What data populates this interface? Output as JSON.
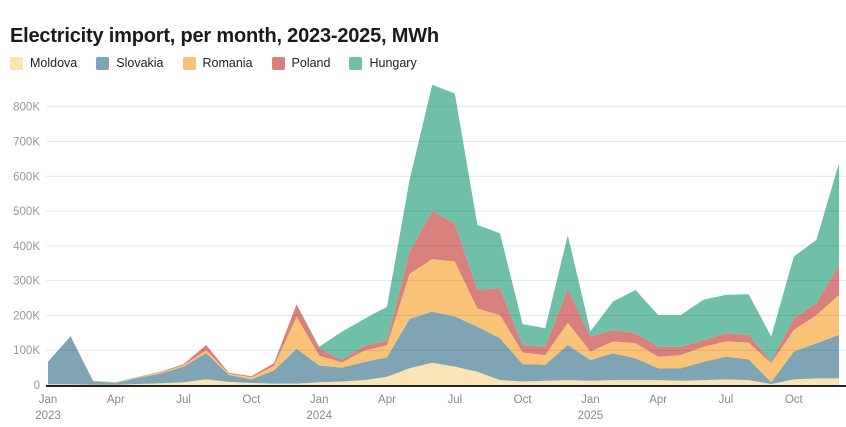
{
  "title": "Electricity import, per month, 2023-2025, MWh",
  "chart_data": {
    "type": "area",
    "stacked": true,
    "title": "Electricity import, per month, 2023-2025, MWh",
    "unit": "MWh",
    "grid": true,
    "legend_position": "top-left",
    "x": [
      "2023-01",
      "2023-02",
      "2023-03",
      "2023-04",
      "2023-05",
      "2023-06",
      "2023-07",
      "2023-08",
      "2023-09",
      "2023-10",
      "2023-11",
      "2023-12",
      "2024-01",
      "2024-02",
      "2024-03",
      "2024-04",
      "2024-05",
      "2024-06",
      "2024-07",
      "2024-08",
      "2024-09",
      "2024-10",
      "2024-11",
      "2024-12",
      "2025-01",
      "2025-02",
      "2025-03",
      "2025-04",
      "2025-05",
      "2025-06",
      "2025-07",
      "2025-08",
      "2025-09",
      "2025-10",
      "2025-11",
      "2025-12"
    ],
    "x_ticks": [
      {
        "i": 0,
        "label": "Jan",
        "year": "2023"
      },
      {
        "i": 3,
        "label": "Apr"
      },
      {
        "i": 6,
        "label": "Jul"
      },
      {
        "i": 9,
        "label": "Oct"
      },
      {
        "i": 12,
        "label": "Jan",
        "year": "2024"
      },
      {
        "i": 15,
        "label": "Apr"
      },
      {
        "i": 18,
        "label": "Jul"
      },
      {
        "i": 21,
        "label": "Oct"
      },
      {
        "i": 24,
        "label": "Jan",
        "year": "2025"
      },
      {
        "i": 27,
        "label": "Apr"
      },
      {
        "i": 30,
        "label": "Jul"
      },
      {
        "i": 33,
        "label": "Oct"
      }
    ],
    "ylim": [
      0,
      800000
    ],
    "yticks": [
      {
        "v": 0,
        "label": "0"
      },
      {
        "v": 100000,
        "label": "100K"
      },
      {
        "v": 200000,
        "label": "200K"
      },
      {
        "v": 300000,
        "label": "300K"
      },
      {
        "v": 400000,
        "label": "400K"
      },
      {
        "v": 500000,
        "label": "500K"
      },
      {
        "v": 600000,
        "label": "600K"
      },
      {
        "v": 700000,
        "label": "700K"
      },
      {
        "v": 800000,
        "label": "800K"
      }
    ],
    "series": [
      {
        "name": "Moldova",
        "color": "#FAE3B4",
        "values": [
          2000,
          2000,
          1000,
          1000,
          3000,
          5000,
          8000,
          16000,
          9000,
          6000,
          4000,
          4000,
          8000,
          10000,
          14000,
          24000,
          48000,
          64000,
          53000,
          38000,
          14000,
          10000,
          12000,
          14000,
          12000,
          14000,
          14000,
          14000,
          12000,
          14000,
          16000,
          14000,
          3000,
          16000,
          19000,
          19000
        ]
      },
      {
        "name": "Slovakia",
        "color": "#7FA4B4",
        "values": [
          65000,
          138000,
          10000,
          5000,
          18000,
          28000,
          45000,
          76000,
          20000,
          10000,
          38000,
          100000,
          48000,
          40000,
          52000,
          56000,
          142000,
          147000,
          144000,
          130000,
          120000,
          50000,
          46000,
          101000,
          60000,
          77000,
          63000,
          34000,
          36000,
          53000,
          65000,
          60000,
          5000,
          80000,
          101000,
          125000
        ]
      },
      {
        "name": "Romania",
        "color": "#F8C377",
        "values": [
          0,
          0,
          1000,
          1000,
          2000,
          3000,
          4000,
          8000,
          4000,
          6000,
          13000,
          92000,
          28000,
          15000,
          33000,
          34000,
          130000,
          151000,
          158000,
          52000,
          67000,
          33000,
          28000,
          64000,
          24000,
          34000,
          43000,
          33000,
          38000,
          43000,
          44000,
          48000,
          55000,
          62000,
          81000,
          115000
        ]
      },
      {
        "name": "Poland",
        "color": "#D97F7D",
        "values": [
          0,
          0,
          0,
          1000,
          1000,
          2000,
          3000,
          15000,
          2000,
          3000,
          8000,
          36000,
          21000,
          8000,
          14000,
          14000,
          63000,
          137000,
          110000,
          53000,
          77000,
          22000,
          24000,
          96000,
          43000,
          33000,
          29000,
          29000,
          24000,
          19000,
          24000,
          22000,
          5000,
          34000,
          34000,
          86000
        ]
      },
      {
        "name": "Hungary",
        "color": "#6FBFA9",
        "values": [
          0,
          0,
          0,
          0,
          0,
          0,
          0,
          0,
          0,
          0,
          0,
          0,
          5000,
          80000,
          77000,
          97000,
          207000,
          364000,
          373000,
          187000,
          158000,
          60000,
          53000,
          156000,
          15000,
          82000,
          124000,
          91000,
          91000,
          116000,
          110000,
          117000,
          71000,
          177000,
          182000,
          293000
        ]
      }
    ]
  }
}
